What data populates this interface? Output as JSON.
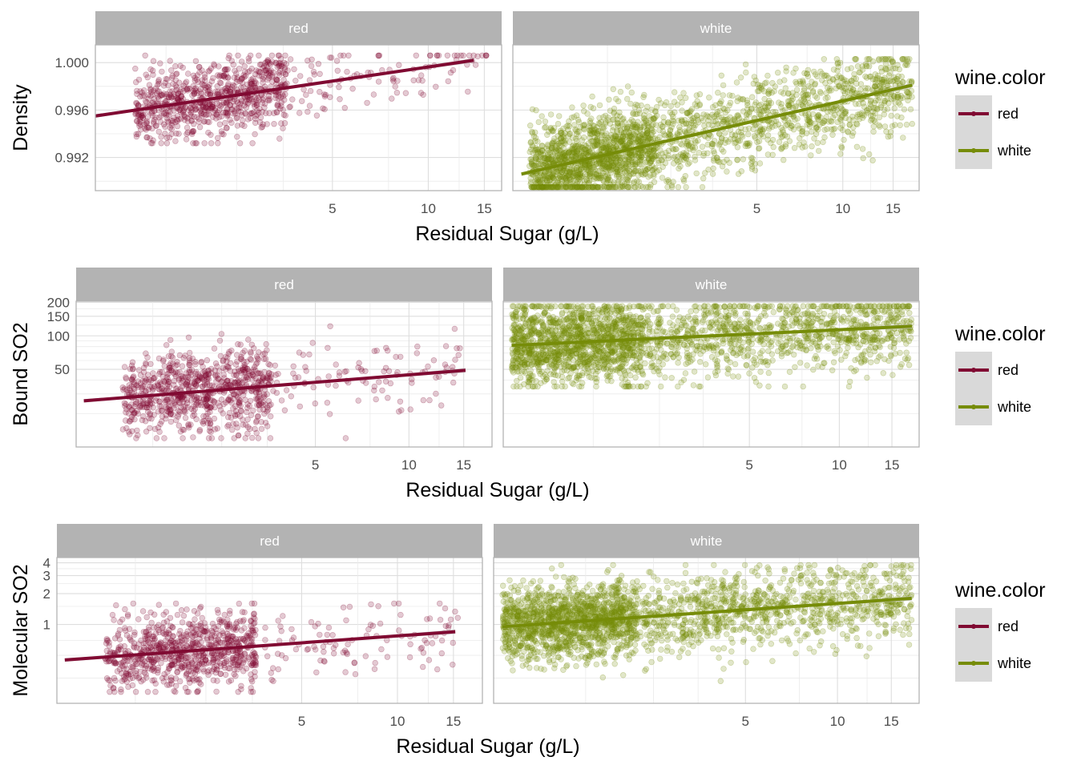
{
  "colors": {
    "red": "#800a32",
    "white": "#768c08",
    "strip": "#b3b3b3",
    "grid": "#ebebeb",
    "border": "#b3b3b3",
    "legend_key": "#d9d9d9",
    "ci": "#c8c8c8"
  },
  "chart_data": [
    {
      "type": "scatter",
      "facets": [
        "red",
        "white"
      ],
      "x_scale": "log",
      "xlabel": "Residual Sugar (g/L)",
      "ylabel": "Density",
      "y_scale": "linear",
      "x_ticks": [
        "5",
        "10",
        "15"
      ],
      "y_ticks": [
        "0.992",
        "0.996",
        "1.000"
      ],
      "xlim": {
        "red": [
          0.9,
          17.0
        ],
        "white": [
          0.7,
          18.5
        ]
      },
      "ylim": [
        0.9892,
        1.0015
      ],
      "series": [
        {
          "name": "red",
          "trend": [
            [
              0.9,
              0.9955
            ],
            [
              13.9,
              1.0002
            ]
          ],
          "cluster": {
            "x": [
              1.2,
              3.6
            ],
            "y": [
              0.9932,
              1.0006
            ]
          },
          "count": 900
        },
        {
          "name": "white",
          "trend": [
            [
              0.75,
              0.9906
            ],
            [
              17.5,
              0.9981
            ]
          ],
          "cluster": {
            "x": [
              0.8,
              17.5
            ],
            "y": [
              0.9895,
              1.0003
            ]
          },
          "count": 2400
        }
      ],
      "legend": {
        "title": "wine.color",
        "entries": [
          "red",
          "white"
        ],
        "position": "right"
      }
    },
    {
      "type": "scatter",
      "facets": [
        "red",
        "white"
      ],
      "x_scale": "log",
      "xlabel": "Residual Sugar (g/L)",
      "ylabel": "Bound SO2",
      "y_scale": "log",
      "x_ticks": [
        "5",
        "10",
        "15"
      ],
      "y_ticks": [
        "50",
        "100",
        "150",
        "200"
      ],
      "xlim": {
        "red": [
          0.85,
          18.5
        ],
        "white": [
          0.75,
          18.5
        ]
      },
      "ylim": [
        10,
        205
      ],
      "series": [
        {
          "name": "red",
          "trend": [
            [
              0.9,
              26
            ],
            [
              15.2,
              49
            ]
          ],
          "cluster": {
            "x": [
              1.2,
              3.6
            ],
            "y": [
              12,
              130
            ]
          },
          "count": 900
        },
        {
          "name": "white",
          "trend": [
            [
              0.8,
              82
            ],
            [
              17.5,
              122
            ]
          ],
          "cluster": {
            "x": [
              0.8,
              17.5
            ],
            "y": [
              35,
              185
            ]
          },
          "count": 2400
        }
      ],
      "legend": {
        "title": "wine.color",
        "entries": [
          "red",
          "white"
        ],
        "position": "right"
      }
    },
    {
      "type": "scatter",
      "facets": [
        "red",
        "white"
      ],
      "x_scale": "log",
      "xlabel": "Residual Sugar (g/L)",
      "ylabel": "Molecular SO2",
      "y_scale": "log",
      "x_ticks": [
        "5",
        "10",
        "15"
      ],
      "y_ticks": [
        "1",
        "2",
        "3",
        "4"
      ],
      "xlim": {
        "red": [
          0.85,
          18.5
        ],
        "white": [
          0.75,
          18.5
        ]
      },
      "ylim": [
        0.17,
        4.5
      ],
      "series": [
        {
          "name": "red",
          "trend": [
            [
              0.9,
              0.45
            ],
            [
              15.2,
              0.85
            ]
          ],
          "cluster": {
            "x": [
              1.2,
              3.6
            ],
            "y": [
              0.22,
              1.6
            ]
          },
          "count": 900
        },
        {
          "name": "white",
          "trend": [
            [
              0.8,
              0.95
            ],
            [
              17.5,
              1.8
            ]
          ],
          "cluster": {
            "x": [
              0.8,
              17.5
            ],
            "y": [
              0.25,
              3.8
            ]
          },
          "count": 2400
        }
      ],
      "legend": {
        "title": "wine.color",
        "entries": [
          "red",
          "white"
        ],
        "position": "right"
      }
    }
  ]
}
